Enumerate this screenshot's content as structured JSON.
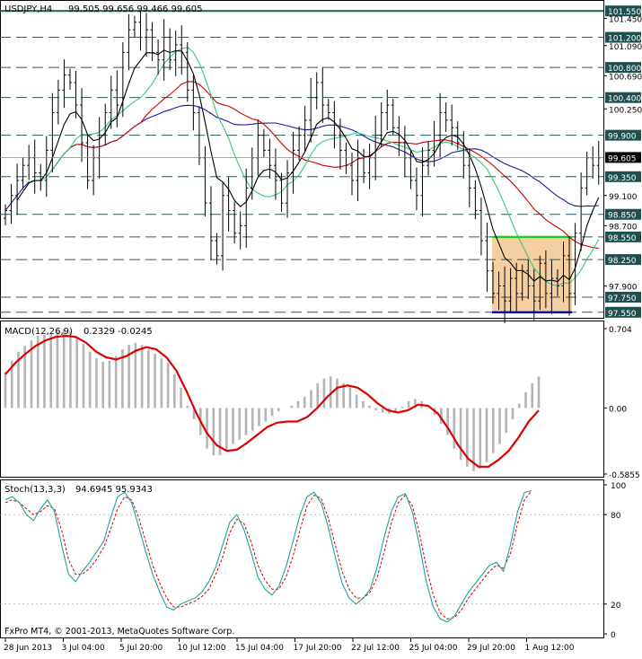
{
  "header": {
    "symbol": "USDJPY,H4",
    "ohlc": "99.505 99.656 99.466 99.605"
  },
  "footer": {
    "copyright": "FxPro MT4, © 2001-2013, MetaQuotes Software Corp."
  },
  "colors": {
    "bar": "#000000",
    "ma_slow": "#1a1aa0",
    "ma_mid": "#cc0000",
    "ma_fast_green": "#33cc77",
    "ma_fast_black": "#000000",
    "level_line": "#2a5a5a",
    "top_line": "#1e6e5a",
    "range_box": "#f5cfa0",
    "range_top": "#22cc22",
    "range_bottom": "#0000cc",
    "macd_hist": "#b4b4b4",
    "macd_signal": "#dd0000",
    "stoch_main": "#20a0a0",
    "stoch_signal": "#cc0000",
    "price_label_bg": "#1e5050",
    "current_label_bg": "#000000"
  },
  "chart_data": [
    {
      "type": "candlestick",
      "name": "price",
      "title": "USDJPY,H4",
      "ohlc_last": {
        "open": 99.505,
        "high": 99.656,
        "low": 99.466,
        "close": 99.605
      },
      "ylim": [
        97.5,
        101.6
      ],
      "y_ticks": [
        101.45,
        101.09,
        100.69,
        100.25,
        99.1,
        98.7,
        97.9
      ],
      "x_tick_labels": [
        "28 Jun 2013",
        "3 Jul 04:00",
        "5 Jul 20:00",
        "10 Jul 12:00",
        "15 Jul 04:00",
        "17 Jul 20:00",
        "22 Jul 12:00",
        "25 Jul 04:00",
        "29 Jul 20:00",
        "1 Aug 12:00"
      ],
      "levels": [
        101.55,
        101.2,
        100.8,
        100.4,
        99.9,
        99.35,
        98.85,
        98.55,
        98.25,
        97.75,
        97.55
      ],
      "current_price": 99.605,
      "range_box": {
        "from": "25 Jul 04:00",
        "to": "1 Aug 12:00",
        "top": 98.55,
        "bottom": 97.55
      },
      "close_series": [
        98.9,
        99.1,
        99.3,
        99.5,
        99.6,
        99.4,
        99.3,
        99.7,
        100.2,
        100.5,
        100.7,
        100.6,
        100.3,
        99.8,
        99.3,
        99.6,
        99.9,
        100.2,
        100.5,
        100.3,
        101.0,
        101.3,
        101.4,
        101.2,
        101.3,
        101.0,
        100.9,
        101.2,
        100.9,
        101.1,
        101.0,
        100.5,
        100.2,
        99.6,
        99.0,
        98.5,
        98.3,
        99.1,
        98.9,
        98.6,
        98.7,
        99.2,
        99.6,
        99.9,
        99.7,
        99.5,
        99.3,
        99.0,
        99.4,
        99.7,
        99.9,
        100.1,
        100.4,
        100.6,
        100.3,
        100.2,
        99.9,
        99.7,
        99.5,
        99.3,
        99.6,
        99.4,
        99.6,
        99.9,
        100.2,
        100.3,
        100.0,
        99.8,
        99.6,
        99.3,
        99.1,
        99.5,
        99.7,
        99.9,
        100.2,
        100.1,
        100.0,
        99.8,
        99.5,
        99.2,
        98.9,
        98.5,
        98.1,
        97.8,
        97.9,
        97.7,
        98.0,
        97.8,
        98.1,
        97.9,
        97.7,
        98.2,
        97.8,
        98.0,
        97.9,
        98.3,
        97.8,
        98.6,
        99.2,
        99.6,
        99.5,
        99.6
      ]
    },
    {
      "type": "bar",
      "name": "macd",
      "title": "MACD(12,26,9)",
      "values_text": "0.2329 -0.0245",
      "ylim": [
        -0.5855,
        0.704
      ],
      "y_tick_labels": [
        "0.704",
        "0.00",
        "-0.5855"
      ],
      "histogram": [
        0.32,
        0.42,
        0.5,
        0.55,
        0.6,
        0.64,
        0.65,
        0.66,
        0.68,
        0.7,
        0.68,
        0.63,
        0.57,
        0.5,
        0.44,
        0.41,
        0.42,
        0.46,
        0.52,
        0.56,
        0.58,
        0.56,
        0.52,
        0.48,
        0.44,
        0.4,
        0.3,
        0.18,
        0.02,
        -0.1,
        -0.24,
        -0.36,
        -0.42,
        -0.42,
        -0.38,
        -0.32,
        -0.28,
        -0.24,
        -0.2,
        -0.16,
        -0.12,
        -0.07,
        -0.03,
        0.0,
        0.02,
        0.06,
        0.1,
        0.16,
        0.22,
        0.26,
        0.28,
        0.26,
        0.22,
        0.18,
        0.12,
        0.06,
        0.02,
        -0.02,
        -0.04,
        -0.05,
        -0.03,
        0.01,
        0.06,
        0.08,
        0.06,
        0.0,
        -0.06,
        -0.14,
        -0.24,
        -0.36,
        -0.46,
        -0.52,
        -0.56,
        -0.54,
        -0.48,
        -0.4,
        -0.32,
        -0.22,
        -0.1,
        0.04,
        0.14,
        0.22,
        0.28
      ],
      "signal": [
        0.3,
        0.4,
        0.48,
        0.55,
        0.6,
        0.63,
        0.64,
        0.63,
        0.58,
        0.5,
        0.45,
        0.43,
        0.46,
        0.51,
        0.54,
        0.52,
        0.45,
        0.33,
        0.15,
        -0.05,
        -0.22,
        -0.33,
        -0.38,
        -0.37,
        -0.31,
        -0.24,
        -0.17,
        -0.13,
        -0.12,
        -0.12,
        -0.08,
        0.0,
        0.1,
        0.18,
        0.2,
        0.18,
        0.12,
        0.04,
        -0.02,
        -0.04,
        -0.02,
        0.03,
        0.02,
        -0.05,
        -0.18,
        -0.33,
        -0.45,
        -0.52,
        -0.52,
        -0.46,
        -0.38,
        -0.26,
        -0.12,
        -0.02
      ]
    },
    {
      "type": "line",
      "name": "stochastic",
      "title": "Stoch(13,3,3)",
      "values_text": "94.6945 95.9343",
      "ylim": [
        0,
        100
      ],
      "y_tick_labels": [
        "100",
        "80",
        "20",
        "0"
      ],
      "main": [
        90,
        92,
        88,
        80,
        76,
        84,
        90,
        82,
        60,
        40,
        35,
        42,
        48,
        55,
        62,
        78,
        92,
        95,
        88,
        72,
        55,
        40,
        28,
        18,
        16,
        20,
        22,
        24,
        28,
        35,
        45,
        60,
        75,
        80,
        70,
        55,
        38,
        30,
        26,
        32,
        45,
        62,
        80,
        92,
        95,
        88,
        72,
        52,
        34,
        24,
        20,
        24,
        30,
        45,
        65,
        82,
        92,
        94,
        82,
        60,
        35,
        18,
        10,
        8,
        12,
        20,
        28,
        34,
        40,
        46,
        48,
        42,
        60,
        82,
        95,
        96
      ],
      "signal": [
        88,
        90,
        88,
        84,
        80,
        82,
        86,
        84,
        70,
        50,
        40,
        40,
        44,
        50,
        58,
        70,
        84,
        92,
        90,
        78,
        62,
        46,
        34,
        24,
        18,
        18,
        20,
        22,
        25,
        30,
        40,
        52,
        68,
        77,
        74,
        62,
        46,
        36,
        30,
        30,
        38,
        52,
        70,
        86,
        93,
        91,
        78,
        60,
        42,
        30,
        24,
        24,
        28,
        38,
        55,
        74,
        88,
        93,
        86,
        68,
        45,
        26,
        14,
        10,
        11,
        16,
        24,
        30,
        36,
        42,
        46,
        44,
        54,
        74,
        90,
        96
      ]
    }
  ]
}
